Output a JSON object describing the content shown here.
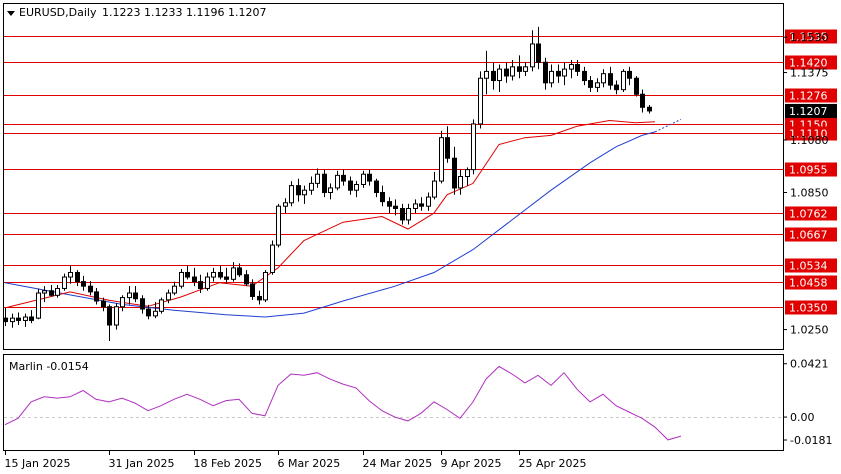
{
  "header": {
    "symbol": "EURUSD,Daily",
    "open": "1.1223",
    "high": "1.1233",
    "low": "1.1196",
    "close": "1.1207"
  },
  "price_axis": {
    "ticks": [
      "1.1530",
      "1.1375",
      "1.1080",
      "1.0850",
      "1.0250"
    ],
    "current_price": "1.1207"
  },
  "levels": [
    "1.1535",
    "1.1420",
    "1.1276",
    "1.1150",
    "1.1110",
    "1.0955",
    "1.0762",
    "1.0667",
    "1.0534",
    "1.0458",
    "1.0350"
  ],
  "indicator": {
    "label": "Marlin -0.0154",
    "ticks": [
      "0.0421",
      "0.00",
      "-0.0181"
    ]
  },
  "date_axis": [
    "15 Jan 2025",
    "31 Jan 2025",
    "18 Feb 2025",
    "6 Mar 2025",
    "24 Mar 2025",
    "9 Apr 2025",
    "25 Apr 2025"
  ],
  "colors": {
    "level_line": "#e00000",
    "level_label_bg": "#e00000",
    "ma_fast": "#e00000",
    "ma_slow": "#1f3fd1",
    "oscillator": "#b030c0",
    "candle_bull_fill": "#ffffff",
    "candle_bear_fill": "#000000",
    "current_price_bg": "#000000"
  },
  "chart_data": {
    "type": "candlestick",
    "price_range": [
      1.0165,
      1.1675
    ],
    "indicator_range": [
      -0.026,
      0.049
    ],
    "ohlc": [
      [
        1.03,
        1.0345,
        1.0265,
        1.0285
      ],
      [
        1.0285,
        1.032,
        1.0258,
        1.03
      ],
      [
        1.03,
        1.0325,
        1.027,
        1.029
      ],
      [
        1.029,
        1.032,
        1.0262,
        1.0305
      ],
      [
        1.0305,
        1.0335,
        1.0278,
        1.029
      ],
      [
        1.03,
        1.043,
        1.0295,
        1.041
      ],
      [
        1.041,
        1.044,
        1.037,
        1.042
      ],
      [
        1.042,
        1.0445,
        1.0395,
        1.04
      ],
      [
        1.04,
        1.0445,
        1.039,
        1.043
      ],
      [
        1.043,
        1.0495,
        1.042,
        1.048
      ],
      [
        1.048,
        1.053,
        1.045,
        1.05
      ],
      [
        1.05,
        1.051,
        1.044,
        1.046
      ],
      [
        1.046,
        1.0485,
        1.042,
        1.044
      ],
      [
        1.044,
        1.0462,
        1.04,
        1.0415
      ],
      [
        1.0415,
        1.0432,
        1.036,
        1.0375
      ],
      [
        1.0375,
        1.039,
        1.033,
        1.035
      ],
      [
        1.035,
        1.036,
        1.02,
        1.027
      ],
      [
        1.027,
        1.0365,
        1.025,
        1.035
      ],
      [
        1.035,
        1.04,
        1.033,
        1.039
      ],
      [
        1.039,
        1.044,
        1.036,
        1.041
      ],
      [
        1.041,
        1.044,
        1.037,
        1.0385
      ],
      [
        1.0385,
        1.04,
        1.032,
        1.034
      ],
      [
        1.034,
        1.0358,
        1.0295,
        1.031
      ],
      [
        1.031,
        1.037,
        1.03,
        1.033
      ],
      [
        1.033,
        1.039,
        1.032,
        1.038
      ],
      [
        1.038,
        1.0425,
        1.0365,
        1.041
      ],
      [
        1.041,
        1.046,
        1.04,
        1.044
      ],
      [
        1.044,
        1.0515,
        1.043,
        1.05
      ],
      [
        1.05,
        1.053,
        1.047,
        1.048
      ],
      [
        1.048,
        1.052,
        1.044,
        1.046
      ],
      [
        1.046,
        1.049,
        1.041,
        1.043
      ],
      [
        1.043,
        1.05,
        1.042,
        1.048
      ],
      [
        1.048,
        1.052,
        1.046,
        1.05
      ],
      [
        1.05,
        1.053,
        1.047,
        1.048
      ],
      [
        1.048,
        1.052,
        1.045,
        1.047
      ],
      [
        1.047,
        1.0545,
        1.046,
        1.052
      ],
      [
        1.052,
        1.054,
        1.048,
        1.049
      ],
      [
        1.049,
        1.051,
        1.044,
        1.045
      ],
      [
        1.045,
        1.047,
        1.038,
        1.0395
      ],
      [
        1.0395,
        1.042,
        1.036,
        1.038
      ],
      [
        1.038,
        1.051,
        1.037,
        1.05
      ],
      [
        1.05,
        1.064,
        1.049,
        1.062
      ],
      [
        1.062,
        1.08,
        1.061,
        1.079
      ],
      [
        1.079,
        1.0825,
        1.076,
        1.0805
      ],
      [
        1.0805,
        1.09,
        1.079,
        1.088
      ],
      [
        1.088,
        1.091,
        1.081,
        1.084
      ],
      [
        1.084,
        1.088,
        1.08,
        1.086
      ],
      [
        1.086,
        1.092,
        1.084,
        1.089
      ],
      [
        1.089,
        1.0955,
        1.087,
        1.093
      ],
      [
        1.093,
        1.095,
        1.083,
        1.085
      ],
      [
        1.085,
        1.089,
        1.082,
        1.087
      ],
      [
        1.087,
        1.0945,
        1.086,
        1.0925
      ],
      [
        1.0925,
        1.095,
        1.088,
        1.09
      ],
      [
        1.09,
        1.092,
        1.084,
        1.086
      ],
      [
        1.086,
        1.09,
        1.083,
        1.0885
      ],
      [
        1.0885,
        1.0945,
        1.087,
        1.093
      ],
      [
        1.093,
        1.095,
        1.088,
        1.09
      ],
      [
        1.09,
        1.091,
        1.083,
        1.085
      ],
      [
        1.085,
        1.088,
        1.079,
        1.081
      ],
      [
        1.081,
        1.083,
        1.076,
        1.079
      ],
      [
        1.079,
        1.082,
        1.075,
        1.078
      ],
      [
        1.078,
        1.08,
        1.071,
        1.073
      ],
      [
        1.073,
        1.08,
        1.071,
        1.078
      ],
      [
        1.078,
        1.082,
        1.076,
        1.08
      ],
      [
        1.08,
        1.083,
        1.077,
        1.079
      ],
      [
        1.079,
        1.085,
        1.077,
        1.083
      ],
      [
        1.083,
        1.094,
        1.082,
        1.09
      ],
      [
        1.09,
        1.112,
        1.089,
        1.109
      ],
      [
        1.109,
        1.114,
        1.098,
        1.1
      ],
      [
        1.1,
        1.105,
        1.084,
        1.087
      ],
      [
        1.087,
        1.095,
        1.084,
        1.092
      ],
      [
        1.092,
        1.096,
        1.088,
        1.095
      ],
      [
        1.095,
        1.117,
        1.093,
        1.115
      ],
      [
        1.115,
        1.138,
        1.113,
        1.135
      ],
      [
        1.135,
        1.147,
        1.128,
        1.138
      ],
      [
        1.138,
        1.142,
        1.13,
        1.134
      ],
      [
        1.134,
        1.141,
        1.129,
        1.139
      ],
      [
        1.139,
        1.142,
        1.133,
        1.136
      ],
      [
        1.136,
        1.143,
        1.134,
        1.14
      ],
      [
        1.14,
        1.145,
        1.135,
        1.138
      ],
      [
        1.138,
        1.142,
        1.136,
        1.14
      ],
      [
        1.14,
        1.156,
        1.138,
        1.15
      ],
      [
        1.15,
        1.1575,
        1.139,
        1.142
      ],
      [
        1.142,
        1.144,
        1.13,
        1.133
      ],
      [
        1.133,
        1.141,
        1.131,
        1.138
      ],
      [
        1.138,
        1.141,
        1.133,
        1.136
      ],
      [
        1.136,
        1.142,
        1.132,
        1.139
      ],
      [
        1.139,
        1.143,
        1.135,
        1.141
      ],
      [
        1.141,
        1.143,
        1.136,
        1.138
      ],
      [
        1.138,
        1.14,
        1.132,
        1.134
      ],
      [
        1.134,
        1.136,
        1.129,
        1.131
      ],
      [
        1.131,
        1.135,
        1.129,
        1.133
      ],
      [
        1.133,
        1.139,
        1.131,
        1.137
      ],
      [
        1.137,
        1.14,
        1.13,
        1.132
      ],
      [
        1.132,
        1.134,
        1.128,
        1.13
      ],
      [
        1.13,
        1.139,
        1.129,
        1.138
      ],
      [
        1.138,
        1.14,
        1.132,
        1.135
      ],
      [
        1.135,
        1.136,
        1.127,
        1.128
      ],
      [
        1.128,
        1.13,
        1.12,
        1.1223
      ],
      [
        1.1223,
        1.1233,
        1.1196,
        1.1207
      ]
    ],
    "ma_fast": [
      [
        0,
        1.0345
      ],
      [
        10,
        1.0415
      ],
      [
        16,
        1.0378
      ],
      [
        22,
        1.0352
      ],
      [
        27,
        1.0392
      ],
      [
        33,
        1.0455
      ],
      [
        38,
        1.044
      ],
      [
        42,
        1.052
      ],
      [
        46,
        1.064
      ],
      [
        52,
        1.072
      ],
      [
        58,
        1.0745
      ],
      [
        62,
        1.069
      ],
      [
        66,
        1.076
      ],
      [
        68,
        1.084
      ],
      [
        72,
        1.089
      ],
      [
        76,
        1.106
      ],
      [
        80,
        1.109
      ],
      [
        84,
        1.11
      ],
      [
        88,
        1.114
      ],
      [
        93,
        1.1165
      ],
      [
        97,
        1.1155
      ],
      [
        100,
        1.116
      ]
    ],
    "ma_slow": [
      [
        0,
        1.0455
      ],
      [
        10,
        1.0402
      ],
      [
        18,
        1.036
      ],
      [
        26,
        1.0335
      ],
      [
        34,
        1.0315
      ],
      [
        40,
        1.0305
      ],
      [
        46,
        1.0322
      ],
      [
        52,
        1.0375
      ],
      [
        60,
        1.044
      ],
      [
        66,
        1.05
      ],
      [
        72,
        1.06
      ],
      [
        78,
        1.073
      ],
      [
        84,
        1.086
      ],
      [
        90,
        1.098
      ],
      [
        94,
        1.105
      ],
      [
        98,
        1.11
      ],
      [
        100,
        1.1115
      ]
    ],
    "ma_slow_projection": [
      [
        100,
        1.1115
      ],
      [
        104,
        1.117
      ]
    ],
    "marlin": [
      [
        0,
        -0.006
      ],
      [
        2,
        -0.001
      ],
      [
        4,
        0.012
      ],
      [
        6,
        0.016
      ],
      [
        8,
        0.015
      ],
      [
        10,
        0.016
      ],
      [
        12,
        0.021
      ],
      [
        14,
        0.014
      ],
      [
        16,
        0.012
      ],
      [
        18,
        0.015
      ],
      [
        20,
        0.011
      ],
      [
        22,
        0.005
      ],
      [
        24,
        0.009
      ],
      [
        26,
        0.014
      ],
      [
        28,
        0.018
      ],
      [
        30,
        0.014
      ],
      [
        32,
        0.009
      ],
      [
        34,
        0.013
      ],
      [
        36,
        0.014
      ],
      [
        38,
        0.003
      ],
      [
        40,
        0.001
      ],
      [
        42,
        0.025
      ],
      [
        44,
        0.034
      ],
      [
        46,
        0.033
      ],
      [
        48,
        0.035
      ],
      [
        50,
        0.03
      ],
      [
        52,
        0.026
      ],
      [
        54,
        0.023
      ],
      [
        56,
        0.013
      ],
      [
        58,
        0.005
      ],
      [
        60,
        0.0
      ],
      [
        62,
        -0.003
      ],
      [
        64,
        0.003
      ],
      [
        66,
        0.012
      ],
      [
        68,
        0.006
      ],
      [
        70,
        -0.001
      ],
      [
        72,
        0.012
      ],
      [
        74,
        0.03
      ],
      [
        76,
        0.04
      ],
      [
        78,
        0.034
      ],
      [
        80,
        0.027
      ],
      [
        82,
        0.033
      ],
      [
        84,
        0.025
      ],
      [
        86,
        0.035
      ],
      [
        88,
        0.022
      ],
      [
        90,
        0.012
      ],
      [
        92,
        0.018
      ],
      [
        94,
        0.009
      ],
      [
        96,
        0.004
      ],
      [
        98,
        -0.001
      ],
      [
        100,
        -0.008
      ],
      [
        102,
        -0.018
      ],
      [
        104,
        -0.015
      ]
    ]
  }
}
